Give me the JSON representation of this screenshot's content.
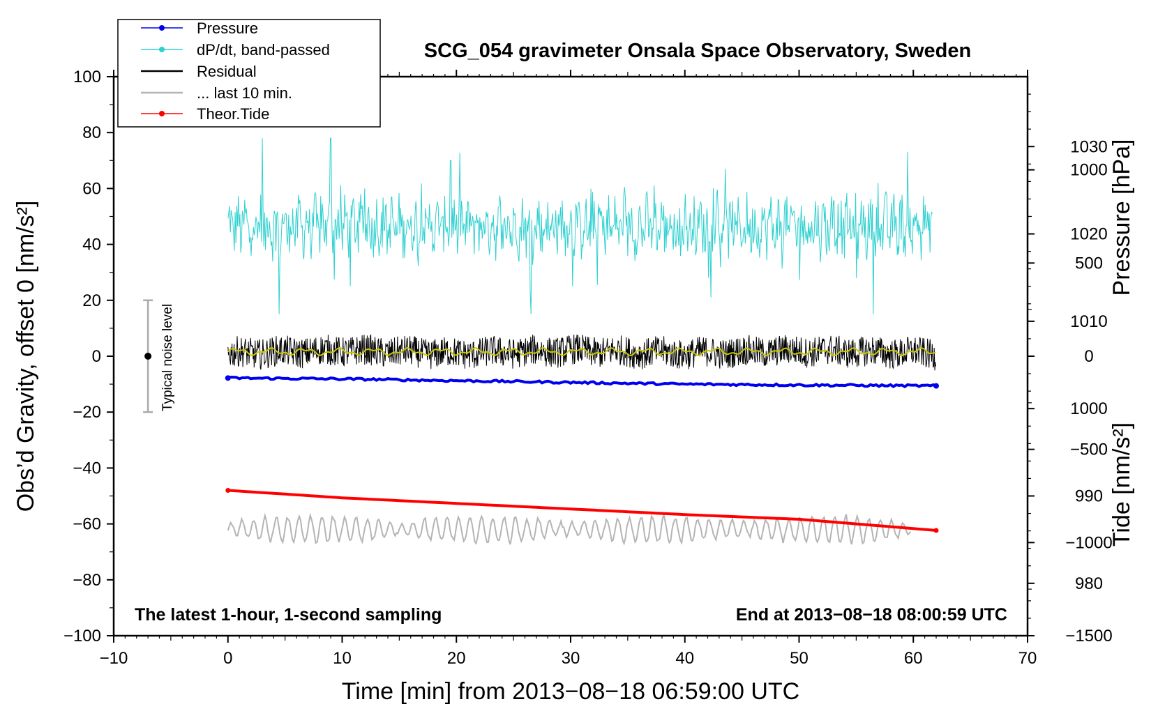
{
  "chart_data": {
    "type": "line",
    "title": "SCG_054 gravimeter Onsala Space Observatory, Sweden",
    "xlabel": "Time [min] from 2013−08−18 06:59:00 UTC",
    "ylabel": "Obs’d Gravity, offset 0 [nm/s²]",
    "y2label": "Pressure [hPa]",
    "y3label": "Tide [nm/s²]",
    "xlim": [
      -10,
      70
    ],
    "ylim": [
      -100,
      100
    ],
    "y2lim": [
      974.0,
      1038.0
    ],
    "y3lim": [
      -1500,
      1500
    ],
    "xticks": [
      -10,
      0,
      10,
      20,
      30,
      40,
      50,
      60,
      70
    ],
    "xtick_labels": [
      "−10",
      "0",
      "10",
      "20",
      "30",
      "40",
      "50",
      "60",
      "70"
    ],
    "yticks": [
      -100,
      -80,
      -60,
      -40,
      -20,
      0,
      20,
      40,
      60,
      80,
      100
    ],
    "ytick_labels": [
      "−100",
      "−80",
      "−60",
      "−40",
      "−20",
      "0",
      "20",
      "40",
      "60",
      "80",
      "100"
    ],
    "y2ticks": [
      980,
      990,
      1000,
      1010,
      1020,
      1030
    ],
    "y2tick_labels": [
      "980",
      "990",
      "1000",
      "1010",
      "1020",
      "1030"
    ],
    "y3ticks": [
      -1500,
      -1000,
      -500,
      0,
      500,
      1000
    ],
    "y3tick_labels": [
      "−1500",
      "−1000",
      "−500",
      "0",
      "500",
      "1000"
    ],
    "annotations": {
      "left_bottom": "The latest 1-hour, 1-second sampling",
      "right_bottom": "End at 2013−08−18 08:00:59 UTC",
      "noise": "Typical noise level"
    },
    "noise_bar": {
      "x": -7,
      "center": 0,
      "low": -20,
      "high": 20
    },
    "legend": {
      "position": "top-left",
      "entries": [
        "Pressure",
        "dP/dt, band-passed",
        "Residual",
        "... last 10 min.",
        "Theor.Tide"
      ]
    },
    "series": [
      {
        "name": "Pressure",
        "axis": "y2",
        "color": "#0000ee",
        "x": [
          0,
          10,
          20,
          30,
          40,
          50,
          62
        ],
        "values": [
          1003.5,
          1003.4,
          1003.2,
          1003.0,
          1002.8,
          1002.7,
          1002.6
        ]
      },
      {
        "name": "dP/dt, band-passed",
        "axis": "y",
        "color": "#2fd0d0",
        "x": [
          0,
          3,
          4.5,
          9,
          12,
          19,
          26.5,
          30,
          40,
          50,
          56.5,
          62
        ],
        "values": [
          52,
          78,
          12,
          78,
          58,
          50,
          22,
          52,
          50,
          52,
          15,
          44
        ]
      },
      {
        "name": "Residual",
        "axis": "y",
        "color": "#000000",
        "x": [
          0,
          10,
          20,
          30,
          40,
          50,
          62
        ],
        "values": [
          1,
          2,
          1,
          2,
          1,
          2,
          1
        ]
      },
      {
        "name": "... last 10 min.",
        "axis": "y",
        "color": "#b4b4b4",
        "x": [
          0,
          10,
          20,
          30,
          40,
          50,
          60
        ],
        "values": [
          -62,
          -62,
          -62,
          -62,
          -62,
          -62,
          -62
        ]
      },
      {
        "name": "Theor.Tide",
        "axis": "y3",
        "color": "#ff0000",
        "x": [
          0,
          10,
          20,
          30,
          40,
          50,
          62
        ],
        "values": [
          -720,
          -760,
          -790,
          -820,
          -850,
          -875,
          -935
        ]
      }
    ],
    "grid": false
  }
}
